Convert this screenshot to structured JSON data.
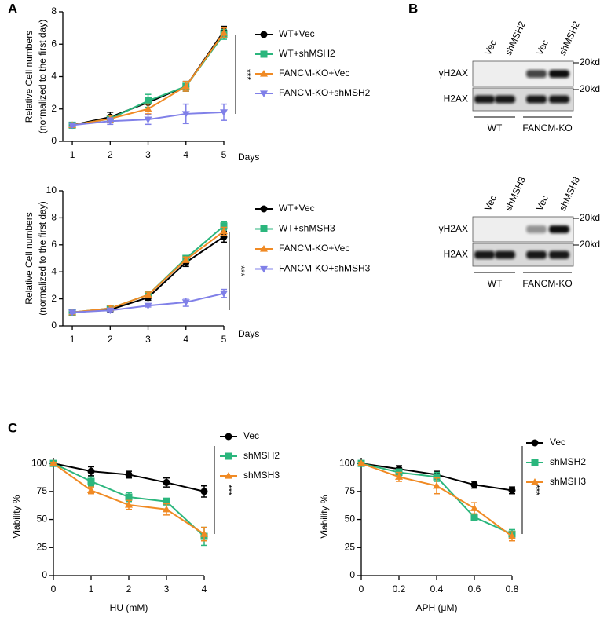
{
  "panel_labels": [
    "A",
    "B",
    "C"
  ],
  "chart_data": [
    {
      "type": "line",
      "x": [
        1,
        2,
        3,
        4,
        5
      ],
      "xlim": [
        0.75,
        5
      ],
      "xticks": [
        1,
        2,
        3,
        4,
        5
      ],
      "ylim": [
        0,
        8
      ],
      "yticks": [
        0,
        2,
        4,
        6,
        8
      ],
      "xlabel": "Days",
      "ylabel": [
        "Relative Cell numbers",
        "(normalized to the first day)"
      ],
      "annotation": "***",
      "legend": "right",
      "series": [
        {
          "name": "WT+Vec",
          "color": "#000000",
          "marker": "circle",
          "values": [
            1,
            1.5,
            2.4,
            3.4,
            6.8
          ],
          "errors": [
            0.1,
            0.3,
            0.3,
            0.3,
            0.3
          ]
        },
        {
          "name": "WT+shMSH2",
          "color": "#2bb67d",
          "marker": "square",
          "values": [
            1,
            1.4,
            2.5,
            3.4,
            6.6
          ],
          "errors": [
            0.1,
            0.2,
            0.4,
            0.3,
            0.3
          ]
        },
        {
          "name": "FANCM-KO+Vec",
          "color": "#f08a24",
          "marker": "triangle-up",
          "values": [
            1,
            1.4,
            2.0,
            3.4,
            6.7
          ],
          "errors": [
            0.1,
            0.2,
            0.3,
            0.3,
            0.3
          ]
        },
        {
          "name": "FANCM-KO+shMSH2",
          "color": "#8080e8",
          "marker": "triangle-down",
          "values": [
            1,
            1.25,
            1.35,
            1.7,
            1.8
          ],
          "errors": [
            0.1,
            0.2,
            0.3,
            0.6,
            0.5
          ]
        }
      ]
    },
    {
      "type": "line",
      "x": [
        1,
        2,
        3,
        4,
        5
      ],
      "xlim": [
        0.75,
        5
      ],
      "xticks": [
        1,
        2,
        3,
        4,
        5
      ],
      "ylim": [
        0,
        10
      ],
      "yticks": [
        0,
        2,
        4,
        6,
        8,
        10
      ],
      "xlabel": "Days",
      "ylabel": [
        "Relative Cell numbers",
        "(normalized to the first day)"
      ],
      "annotation": "***",
      "legend": "right",
      "series": [
        {
          "name": "WT+Vec",
          "color": "#000000",
          "marker": "circle",
          "values": [
            1,
            1.2,
            2.1,
            4.7,
            6.6
          ],
          "errors": [
            0.1,
            0.2,
            0.2,
            0.3,
            0.4
          ]
        },
        {
          "name": "WT+shMSH3",
          "color": "#2bb67d",
          "marker": "square",
          "values": [
            1,
            1.3,
            2.3,
            5.0,
            7.4
          ],
          "errors": [
            0.1,
            0.2,
            0.2,
            0.2,
            0.3
          ]
        },
        {
          "name": "FANCM-KO+Vec",
          "color": "#f08a24",
          "marker": "triangle-up",
          "values": [
            1,
            1.3,
            2.3,
            4.9,
            7.0
          ],
          "errors": [
            0.1,
            0.2,
            0.2,
            0.2,
            0.3
          ]
        },
        {
          "name": "FANCM-KO+shMSH3",
          "color": "#8080e8",
          "marker": "triangle-down",
          "values": [
            1,
            1.15,
            1.5,
            1.75,
            2.4
          ],
          "errors": [
            0.1,
            0.1,
            0.1,
            0.3,
            0.3
          ]
        }
      ]
    },
    {
      "type": "line",
      "x": [
        0,
        1,
        2,
        3,
        4
      ],
      "xlim": [
        0,
        4
      ],
      "xticks": [
        0,
        1,
        2,
        3,
        4
      ],
      "ylim": [
        0,
        105
      ],
      "yticks": [
        0,
        25,
        50,
        75,
        100
      ],
      "xlabel": "HU (mM)",
      "ylabel": "Viability %",
      "annotation": "***",
      "legend": "right",
      "series": [
        {
          "name": "Vec",
          "color": "#000000",
          "marker": "circle",
          "values": [
            100,
            93,
            90,
            83,
            75
          ],
          "errors": [
            1,
            4,
            3,
            4,
            5
          ]
        },
        {
          "name": "shMSH2",
          "color": "#2bb67d",
          "marker": "square",
          "values": [
            100,
            84,
            70,
            66,
            35
          ],
          "errors": [
            1,
            4,
            4,
            3,
            8
          ]
        },
        {
          "name": "shMSH3",
          "color": "#f08a24",
          "marker": "triangle-up",
          "values": [
            100,
            76,
            63,
            59,
            37
          ],
          "errors": [
            1,
            3,
            4,
            5,
            6
          ]
        }
      ]
    },
    {
      "type": "line",
      "x": [
        0,
        0.2,
        0.4,
        0.6,
        0.8
      ],
      "xlim": [
        0,
        0.8
      ],
      "xticks": [
        0,
        0.2,
        0.4,
        0.6,
        0.8
      ],
      "ylim": [
        0,
        105
      ],
      "yticks": [
        0,
        25,
        50,
        75,
        100
      ],
      "xlabel": "APH (μM)",
      "ylabel": "Viability %",
      "annotation": "***",
      "legend": "right",
      "series": [
        {
          "name": "Vec",
          "color": "#000000",
          "marker": "circle",
          "values": [
            100,
            95,
            90,
            81,
            76
          ],
          "errors": [
            1,
            3,
            3,
            3,
            3
          ]
        },
        {
          "name": "shMSH2",
          "color": "#2bb67d",
          "marker": "square",
          "values": [
            100,
            92,
            88,
            52,
            37
          ],
          "errors": [
            1,
            3,
            4,
            3,
            4
          ]
        },
        {
          "name": "shMSH3",
          "color": "#f08a24",
          "marker": "triangle-up",
          "values": [
            100,
            88,
            80,
            60,
            35
          ],
          "errors": [
            1,
            4,
            7,
            5,
            4
          ]
        }
      ]
    }
  ],
  "blots": [
    {
      "lanes": [
        "Vec",
        "shMSH2",
        "Vec",
        "shMSH2"
      ],
      "rows": [
        "γH2AX",
        "H2AX"
      ],
      "markers": [
        "20kd",
        "20kd"
      ],
      "groups": [
        "WT",
        "FANCM-KO"
      ]
    },
    {
      "lanes": [
        "Vec",
        "shMSH3",
        "Vec",
        "shMSH3"
      ],
      "rows": [
        "γH2AX",
        "H2AX"
      ],
      "markers": [
        "20kd",
        "20kd"
      ],
      "groups": [
        "WT",
        "FANCM-KO"
      ]
    }
  ]
}
